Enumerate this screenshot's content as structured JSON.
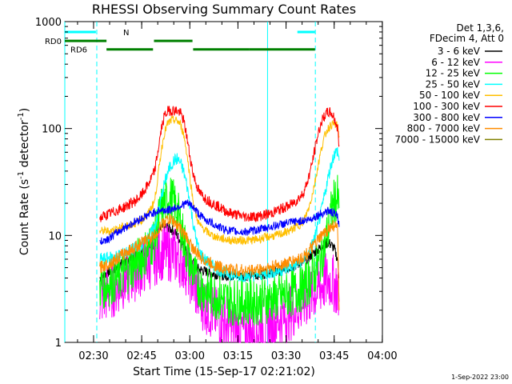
{
  "chart_data": {
    "type": "line",
    "title": "RHESSI Observing Summary Count Rates",
    "xlabel": "Start Time (15-Sep-17 02:21:02)",
    "ylabel_parts": {
      "pre": "Count Rate (s",
      "sup1": "-1",
      "mid": " detector",
      "sup2": "-1",
      "post": ")"
    },
    "x_unit": "minutes after 02:21:02",
    "xlim": [
      0,
      99
    ],
    "ylim": [
      1,
      1000
    ],
    "yscale": "log",
    "x_ticks": [
      {
        "x": 8.97,
        "label": "02:30"
      },
      {
        "x": 23.97,
        "label": "02:45"
      },
      {
        "x": 38.97,
        "label": "03:00"
      },
      {
        "x": 53.97,
        "label": "03:15"
      },
      {
        "x": 68.97,
        "label": "03:30"
      },
      {
        "x": 83.97,
        "label": "03:45"
      },
      {
        "x": 98.97,
        "label": "04:00"
      }
    ],
    "y_ticks": [
      {
        "y": 1,
        "label": "1"
      },
      {
        "y": 10,
        "label": "10"
      },
      {
        "y": 100,
        "label": "100"
      },
      {
        "y": 1000,
        "label": "1000"
      }
    ],
    "x_sample": [
      10.9,
      12,
      14,
      16,
      18,
      20,
      22,
      24,
      26,
      28,
      29,
      30,
      31,
      32,
      33,
      34,
      35,
      36,
      37,
      38,
      39,
      40,
      41,
      42,
      44,
      46,
      48,
      50,
      52,
      54,
      56,
      58,
      60,
      62,
      64,
      66,
      68,
      70,
      72,
      74,
      75,
      76,
      77,
      78,
      79,
      80,
      81,
      82,
      83,
      84,
      85,
      85.5
    ],
    "series": [
      {
        "name": "3 - 6 keV",
        "color": "#000000",
        "values": [
          4.0,
          4.2,
          4.6,
          5.0,
          5.5,
          6.0,
          6.4,
          6.9,
          7.5,
          8.5,
          10.5,
          11.5,
          12,
          12,
          11.5,
          11,
          10,
          9,
          8,
          7,
          6.2,
          5.5,
          5.0,
          4.8,
          4.6,
          4.4,
          4.3,
          4.2,
          4.2,
          4.2,
          4.2,
          4.2,
          4.3,
          4.4,
          4.5,
          4.6,
          4.8,
          5.0,
          5.3,
          5.6,
          5.9,
          6.2,
          6.6,
          7.0,
          7.4,
          7.8,
          8.2,
          8.6,
          8.2,
          7.5,
          6.0,
          4.0
        ]
      },
      {
        "name": "6 - 12 keV",
        "color": "#ff00ff",
        "values": [
          2.6,
          2.7,
          3.0,
          3.3,
          3.7,
          4.1,
          4.5,
          5.0,
          5.6,
          6.2,
          6.6,
          7.0,
          7.0,
          6.9,
          6.8,
          6.6,
          6.3,
          6.0,
          5.6,
          5.0,
          4.3,
          3.6,
          3.0,
          2.6,
          2.2,
          1.9,
          1.7,
          1.55,
          1.4,
          1.3,
          1.25,
          1.25,
          1.3,
          1.4,
          1.5,
          1.6,
          1.75,
          1.9,
          2.1,
          2.3,
          2.45,
          2.6,
          2.8,
          3.0,
          3.2,
          3.4,
          3.6,
          3.8,
          3.7,
          3.5,
          3.2,
          2.4
        ]
      },
      {
        "name": "12 - 25 keV",
        "color": "#00ff00",
        "values": [
          3.3,
          3.4,
          3.6,
          3.9,
          4.3,
          4.8,
          5.5,
          6.3,
          7.5,
          9.5,
          13,
          17,
          20,
          22,
          22,
          20,
          17,
          13,
          9.5,
          7,
          5.5,
          4.5,
          3.8,
          3.4,
          3.0,
          2.8,
          2.6,
          2.5,
          2.4,
          2.4,
          2.4,
          2.4,
          2.4,
          2.5,
          2.5,
          2.6,
          2.7,
          2.8,
          3.0,
          3.2,
          3.4,
          3.7,
          4.1,
          4.6,
          5.3,
          6.3,
          8,
          11,
          16,
          21,
          22,
          18
        ]
      },
      {
        "name": "25 - 50 keV",
        "color": "#00ffff",
        "values": [
          6.0,
          6.0,
          6.2,
          6.4,
          6.7,
          7.1,
          7.6,
          8.3,
          9.5,
          12,
          16,
          22,
          30,
          38,
          45,
          50,
          52,
          48,
          40,
          30,
          20,
          13,
          9,
          7.0,
          5.8,
          5.2,
          4.8,
          4.5,
          4.3,
          4.2,
          4.2,
          4.2,
          4.3,
          4.4,
          4.5,
          4.6,
          4.8,
          5.0,
          5.3,
          5.7,
          6.2,
          6.9,
          8,
          9.8,
          12.5,
          17,
          24,
          34,
          46,
          58,
          62,
          50
        ]
      },
      {
        "name": "50 - 100 keV",
        "color": "#ffbf00",
        "values": [
          11,
          11,
          11,
          11.5,
          12,
          12.5,
          13,
          14,
          16,
          21,
          35,
          60,
          90,
          110,
          118,
          120,
          118,
          110,
          90,
          60,
          35,
          21,
          15,
          12.5,
          11,
          10,
          9.5,
          9.2,
          9.0,
          9.0,
          9.0,
          9.0,
          9.2,
          9.5,
          9.8,
          10,
          10.5,
          11,
          12,
          13,
          15,
          18,
          23,
          32,
          46,
          65,
          85,
          100,
          108,
          110,
          105,
          85
        ]
      },
      {
        "name": "100 - 300 keV",
        "color": "#ff0000",
        "values": [
          14.5,
          15,
          16,
          17,
          18,
          19.5,
          21,
          24,
          30,
          40,
          60,
          95,
          130,
          145,
          148,
          148,
          146,
          140,
          120,
          85,
          55,
          38,
          30,
          25,
          22,
          20,
          18.5,
          17,
          16,
          15.5,
          15,
          15,
          15,
          15.5,
          16,
          17,
          18,
          19,
          21,
          24,
          28,
          35,
          46,
          65,
          90,
          115,
          132,
          142,
          140,
          125,
          100,
          70
        ]
      },
      {
        "name": "300 - 800 keV",
        "color": "#0000ff",
        "values": [
          8.5,
          9,
          9.5,
          10.5,
          11.5,
          12.5,
          13.5,
          14.5,
          15.5,
          16.5,
          17,
          17.2,
          17.3,
          17.2,
          17.5,
          18,
          18.5,
          19,
          19.5,
          20,
          19.5,
          18.5,
          17,
          15.5,
          14,
          13,
          12,
          11.4,
          11,
          10.8,
          10.8,
          11,
          11.3,
          11.6,
          12,
          12.4,
          12.8,
          13.2,
          13.5,
          13.7,
          13.8,
          14,
          14.5,
          15,
          15.5,
          16,
          16.5,
          17,
          16.5,
          16,
          15,
          12
        ]
      },
      {
        "name": "800 - 7000 keV",
        "color": "#ff8c00",
        "values": [
          5.0,
          5.2,
          5.5,
          6.0,
          6.6,
          7.2,
          7.8,
          8.5,
          9.2,
          10,
          11,
          12.2,
          13.5,
          14,
          14,
          13.5,
          12.5,
          11.5,
          10.5,
          9.5,
          8.5,
          7.6,
          6.9,
          6.3,
          5.8,
          5.4,
          5.1,
          4.9,
          4.8,
          4.7,
          4.7,
          4.7,
          4.8,
          4.9,
          5.0,
          5.2,
          5.4,
          5.6,
          5.9,
          6.2,
          6.6,
          7.0,
          7.6,
          8.3,
          9.0,
          9.8,
          10.5,
          11.5,
          12,
          12.5,
          11.5,
          2.0
        ]
      },
      {
        "name": "7000 - 15000 keV",
        "color": "#808000",
        "values": []
      }
    ],
    "state_bars": [
      {
        "label": "",
        "color": "#00ffff",
        "y": 800,
        "segments": [
          [
            0,
            9.7
          ],
          [
            72.5,
            78
          ]
        ]
      },
      {
        "label": "RD0",
        "color": "#008000",
        "y": 660,
        "segments": [
          [
            0,
            13
          ]
        ]
      },
      {
        "label": "",
        "color": "#008000",
        "y": 550,
        "segments": [
          [
            13,
            27.5
          ],
          [
            40,
            57.5
          ],
          [
            57.5,
            78
          ]
        ]
      },
      {
        "label": "",
        "color": "#008000",
        "y": 660,
        "segments": [
          [
            27.8,
            39.8
          ]
        ]
      },
      {
        "label": "RD6",
        "color": "#008000",
        "y": 550,
        "segments": []
      }
    ],
    "bar_marker_label": "N",
    "solid_vlines": [
      -14.5,
      63.2
    ],
    "dashed_vlines": [
      9.97,
      78.1
    ],
    "legend_header": [
      "Det 1,3,6,",
      "FDecim 4, Att 0"
    ],
    "legend_position": "right"
  },
  "footer": {
    "timestamp": "1-Sep-2022 23:00"
  }
}
